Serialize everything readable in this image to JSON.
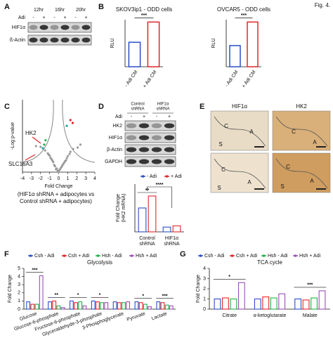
{
  "figure_label": "Fig. 4.",
  "panels": {
    "A": {
      "letter": "A",
      "times": [
        "12hr",
        "16hr",
        "20hr"
      ],
      "treatment": "Adi",
      "signs": [
        "-",
        "+",
        "-",
        "+",
        "-",
        "+"
      ],
      "rows": [
        "HIF1α",
        "ß-Actin"
      ]
    },
    "B": {
      "letter": "B"
    },
    "C": {
      "letter": "C"
    },
    "D": {
      "letter": "D",
      "groups": [
        [
          "Control",
          "shRNA"
        ],
        [
          "HIF1α",
          "shRNA"
        ]
      ],
      "treatment": "Adi",
      "signs": [
        "-",
        "+",
        "-",
        "+"
      ],
      "rows": [
        "HK2",
        "HIF1α",
        "β-Actin",
        "GAPDH"
      ]
    },
    "E": {
      "letter": "E",
      "columns": [
        "HIF1α",
        "HK2"
      ],
      "tissue_labels": [
        [
          "C",
          "S",
          "A"
        ],
        [
          "C",
          "A"
        ],
        [
          "C",
          "S",
          "A"
        ],
        [
          "C",
          "S",
          "A"
        ]
      ]
    },
    "F": {
      "letter": "F"
    },
    "G": {
      "letter": "G"
    }
  },
  "chart_data": [
    {
      "type": "bar",
      "title": "SKOV3ip1 - ODD cells",
      "ylabel": "RLU",
      "categories": [
        "- Adi CM",
        "+ Adi CM"
      ],
      "values": [
        0.52,
        0.95
      ],
      "colors": [
        "#2b4fc7",
        "#e3262b"
      ],
      "ylim": [
        0,
        1
      ],
      "significance": "***"
    },
    {
      "type": "bar",
      "title": "OVCAR5 - ODD cells",
      "ylabel": "RLU",
      "categories": [
        "- Adi CM",
        "+ Adi CM"
      ],
      "values": [
        0.45,
        0.95
      ],
      "colors": [
        "#2b4fc7",
        "#e3262b"
      ],
      "ylim": [
        0,
        1
      ],
      "significance": "***"
    },
    {
      "type": "scatter",
      "xlabel": "Fold Change",
      "ylabel": "-Log p-value",
      "xlim": [
        -4,
        4
      ],
      "xticks": [
        -4,
        -3,
        -2,
        -1,
        0,
        1,
        2,
        3,
        4
      ],
      "ylim": [
        0,
        10
      ],
      "annotations": [
        "HK2",
        "SLC16A3"
      ],
      "caption": [
        "(HIF1α shRNA + adipocytes vs",
        "Control shRNA + adipocytes)"
      ],
      "series": [
        {
          "color": "#9a9a9a",
          "x": [
            -0.3,
            0.2,
            -0.5,
            0.5,
            -0.8,
            0.8,
            -1.0,
            1.0,
            -0.1,
            0.1,
            -0.6,
            0.6,
            -1.2,
            1.3,
            -0.4,
            0.4,
            -1.5,
            1.6,
            -0.2,
            0.3,
            -0.9,
            0.9,
            -2.0,
            2.1,
            0,
            -0.7,
            0.7,
            -1.1,
            1.2,
            -2.5,
            2.4
          ],
          "y": [
            0.4,
            0.5,
            1.0,
            1.1,
            1.8,
            1.6,
            2.3,
            2.2,
            0.2,
            0.3,
            1.4,
            1.3,
            2.6,
            2.8,
            0.8,
            0.9,
            3.0,
            3.2,
            0.5,
            0.7,
            2.0,
            1.9,
            3.5,
            3.4,
            0.1,
            1.6,
            1.5,
            2.4,
            2.5,
            3.6,
            3.8
          ]
        },
        {
          "color": "#e3262b",
          "x": [
            1.3,
            1.55
          ],
          "y": [
            7.2,
            6.8
          ]
        },
        {
          "color": "#1aa6a0",
          "x": [
            0.9,
            -1.75
          ],
          "y": [
            6.4,
            3.3
          ]
        },
        {
          "color": "#22b04b",
          "x": [
            -1.45,
            -1.6
          ],
          "y": [
            4.4,
            3.8
          ]
        }
      ]
    },
    {
      "type": "grouped-bar",
      "ylabel": [
        "Fold Change",
        "(HK2 mRNA)"
      ],
      "categories": [
        [
          "Control",
          "shRNA"
        ],
        [
          "HIF1α",
          "shRNA"
        ]
      ],
      "ylim": [
        0,
        2
      ],
      "series": [
        {
          "name": "- Adi",
          "color": "#2b4fc7",
          "values": [
            1.0,
            0.2
          ]
        },
        {
          "name": "+ Adi",
          "color": "#e3262b",
          "values": [
            1.5,
            0.25
          ]
        }
      ],
      "significance": [
        "**",
        "****"
      ]
    },
    {
      "type": "grouped-bar",
      "title": "Glycolysis",
      "ylabel": "Fold Change",
      "categories": [
        "Glucose",
        "Glucose-6-phosphate",
        "Fructose-6-phosphate",
        "Glyceraldehyde-3-phosphate",
        "3-Phosphoglycerate",
        "Pyruvate",
        "Lactate"
      ],
      "ylim": [
        0,
        5
      ],
      "yticks": [
        0,
        1,
        2,
        3,
        4,
        5
      ],
      "series": [
        {
          "name": "Csh - Adi",
          "color": "#2b4fc7",
          "values": [
            0.9,
            0.9,
            1.0,
            1.0,
            0.9,
            0.9,
            0.9
          ]
        },
        {
          "name": "Csh + Adi",
          "color": "#e3262b",
          "values": [
            0.6,
            1.0,
            0.8,
            0.9,
            0.8,
            0.8,
            0.8
          ]
        },
        {
          "name": "Hsh - Adi",
          "color": "#22b04b",
          "values": [
            0.6,
            0.4,
            0.9,
            0.8,
            0.8,
            0.6,
            0.5
          ]
        },
        {
          "name": "Hsh + Adi",
          "color": "#9b4fb5",
          "values": [
            4.1,
            0.2,
            0.4,
            0.8,
            0.9,
            0.3,
            0.4
          ]
        }
      ],
      "significance": [
        "***",
        "**",
        "*",
        "*",
        null,
        "*",
        "***"
      ]
    },
    {
      "type": "grouped-bar",
      "title": "TCA cycle",
      "ylabel": "Fold Change",
      "categories": [
        "Citrate",
        "α-ketoglutarate",
        "Malate"
      ],
      "ylim": [
        0,
        4
      ],
      "yticks": [
        0,
        1,
        2,
        3,
        4
      ],
      "series": [
        {
          "name": "Csh - Adi",
          "color": "#2b4fc7",
          "values": [
            1.0,
            1.0,
            1.0
          ]
        },
        {
          "name": "Csh + Adi",
          "color": "#e3262b",
          "values": [
            1.1,
            1.2,
            0.9
          ]
        },
        {
          "name": "Hsh - Adi",
          "color": "#22b04b",
          "values": [
            1.0,
            1.1,
            1.1
          ]
        },
        {
          "name": "Hsh + Adi",
          "color": "#9b4fb5",
          "values": [
            2.6,
            1.5,
            1.8
          ]
        }
      ],
      "significance": [
        "*",
        null,
        "***"
      ]
    }
  ]
}
